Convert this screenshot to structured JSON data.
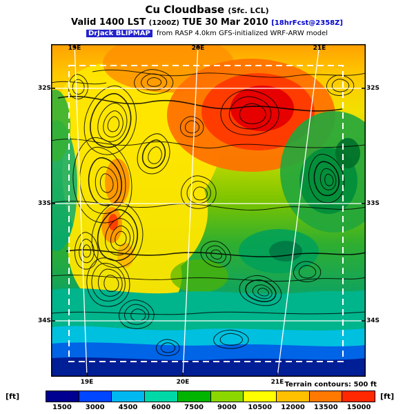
{
  "header": {
    "title": "Cu Cloudbase",
    "title_qualifier": "(Sfc. LCL)",
    "valid_prefix": "Valid 1400 LST",
    "valid_zulu": "(1200Z)",
    "valid_date": "TUE 30 Mar 2010",
    "forecast_tag": "[18hrFcst@2358Z]",
    "model_badge": "DrJack BLIPMAP",
    "model_text": "from RASP 4.0km GFS-initialized WRF-ARW model"
  },
  "map": {
    "ticks_top": [
      "19E",
      "20E",
      "21E"
    ],
    "ticks_bottom": [
      "19E",
      "20E",
      "21E"
    ],
    "ticks_left": [
      "32S",
      "33S",
      "34S"
    ],
    "ticks_right": [
      "32S",
      "33S",
      "34S"
    ],
    "terrain_note": "Terrain contours: 500 ft"
  },
  "colorbar": {
    "unit_left": "[ft]",
    "unit_right": "[ft]",
    "values": [
      "1500",
      "3000",
      "4500",
      "6000",
      "7500",
      "9000",
      "10500",
      "12000",
      "13500",
      "15000"
    ],
    "colors": [
      "#000090",
      "#0045ff",
      "#00b8f0",
      "#00d8a8",
      "#00b400",
      "#8cd600",
      "#ffff00",
      "#ffc000",
      "#ff7800",
      "#ff2800"
    ]
  }
}
